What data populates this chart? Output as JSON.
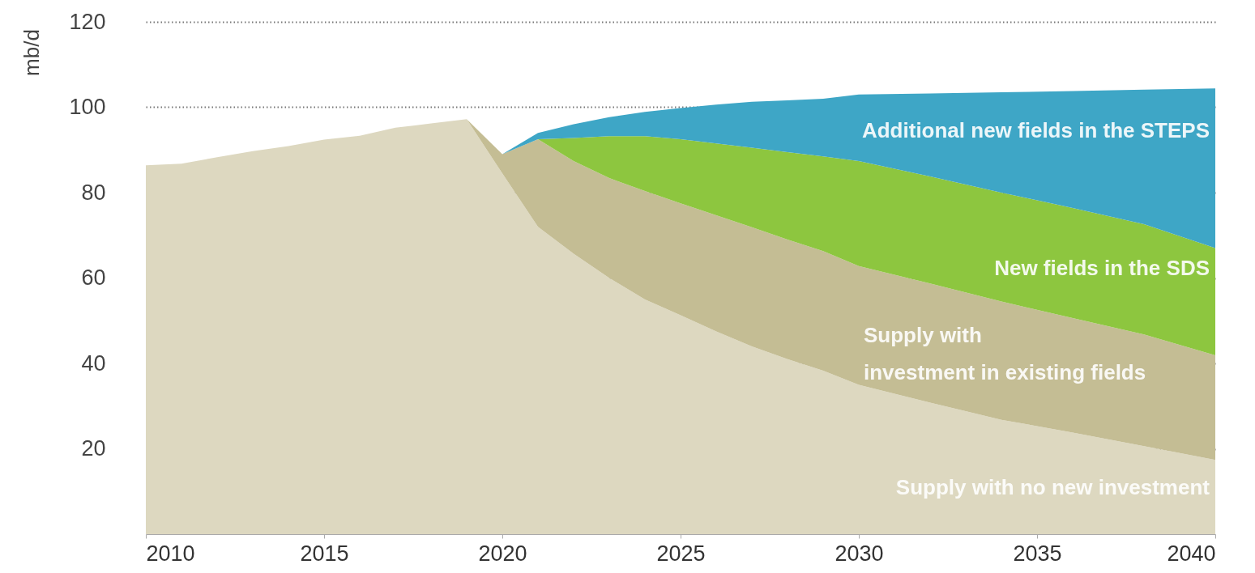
{
  "chart_data": {
    "type": "area",
    "stacked": true,
    "ylabel": "mb/d",
    "x": [
      2010,
      2011,
      2012,
      2013,
      2014,
      2015,
      2016,
      2017,
      2018,
      2019,
      2020,
      2021,
      2022,
      2023,
      2024,
      2025,
      2026,
      2027,
      2028,
      2029,
      2030,
      2032,
      2034,
      2036,
      2038,
      2040
    ],
    "series": [
      {
        "name": "Supply with no new investment",
        "color": "#ddd8c0",
        "values": [
          86.4,
          86.8,
          88.3,
          89.7,
          90.9,
          92.4,
          93.3,
          95.2,
          96.2,
          97.2,
          84.5,
          72,
          65.7,
          60,
          55,
          51.3,
          47.5,
          44,
          41,
          38.3,
          35,
          30.8,
          26.8,
          23.8,
          20.6,
          17.4
        ]
      },
      {
        "name": "Supply with investment in existing fields",
        "color": "#c4bd94",
        "values": [
          0,
          0,
          0,
          0,
          0,
          0,
          0,
          0,
          0,
          0,
          4.5,
          20.5,
          21.7,
          23.4,
          25.4,
          26.2,
          27.2,
          27.9,
          28,
          28,
          27.8,
          27.9,
          27.7,
          26.8,
          26.2,
          24.5
        ]
      },
      {
        "name": "New fields in the SDS",
        "color": "#8dc63f",
        "values": [
          0,
          0,
          0,
          0,
          0,
          0,
          0,
          0,
          0,
          0,
          0,
          0,
          5.4,
          9.8,
          12.8,
          15,
          16.8,
          18.6,
          20.5,
          22.2,
          24.6,
          25.1,
          25.5,
          25.8,
          25.8,
          25.1
        ]
      },
      {
        "name": "Additional new fields in the STEPS",
        "color": "#3ea6c6",
        "values": [
          0,
          0,
          0,
          0,
          0,
          0,
          0,
          0,
          0,
          0,
          0,
          1.5,
          3.2,
          4.5,
          5.7,
          7.3,
          9.1,
          10.8,
          12.1,
          13.5,
          15.6,
          19.4,
          23.5,
          27.4,
          31.5,
          37.4
        ]
      }
    ],
    "xlim": [
      2010,
      2040
    ],
    "xticks": [
      2010,
      2015,
      2020,
      2025,
      2030,
      2035,
      2040
    ],
    "ylim": [
      0,
      120
    ],
    "yticks": [
      20,
      40,
      60,
      80,
      100,
      120
    ],
    "grid": "y",
    "line_style": "dotted",
    "legend": false
  }
}
